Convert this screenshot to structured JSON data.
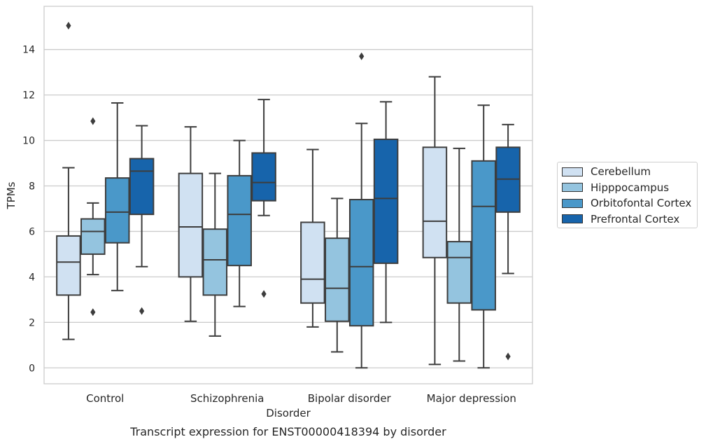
{
  "chart_data": {
    "type": "box",
    "title": "Transcript expression for ENST00000418394 by disorder",
    "xlabel": "Disorder",
    "ylabel": "TPMs",
    "ylim": [
      -0.7,
      15.9
    ],
    "yticks": [
      0,
      2,
      4,
      6,
      8,
      10,
      12,
      14
    ],
    "grid": true,
    "legend_position": "right",
    "categories": [
      "Control",
      "Schizophrenia",
      "Bipolar disorder",
      "Major depression"
    ],
    "series": [
      {
        "name": "Cerebellum",
        "color": "#d0e1f2",
        "boxes": [
          {
            "min": 1.25,
            "q1": 3.2,
            "median": 4.65,
            "q3": 5.8,
            "max": 8.8,
            "outliers": [
              15.05
            ]
          },
          {
            "min": 2.05,
            "q1": 4.0,
            "median": 6.2,
            "q3": 8.55,
            "max": 10.6,
            "outliers": []
          },
          {
            "min": 1.8,
            "q1": 2.85,
            "median": 3.9,
            "q3": 6.4,
            "max": 9.6,
            "outliers": []
          },
          {
            "min": 0.15,
            "q1": 4.85,
            "median": 6.45,
            "q3": 9.7,
            "max": 12.8,
            "outliers": []
          }
        ]
      },
      {
        "name": "Hipppocampus",
        "color": "#94c4df",
        "boxes": [
          {
            "min": 4.1,
            "q1": 5.0,
            "median": 6.0,
            "q3": 6.55,
            "max": 7.25,
            "outliers": [
              2.45,
              10.85
            ]
          },
          {
            "min": 1.4,
            "q1": 3.2,
            "median": 4.75,
            "q3": 6.1,
            "max": 8.55,
            "outliers": []
          },
          {
            "min": 0.7,
            "q1": 2.05,
            "median": 3.5,
            "q3": 5.7,
            "max": 7.45,
            "outliers": []
          },
          {
            "min": 0.3,
            "q1": 2.85,
            "median": 4.85,
            "q3": 5.55,
            "max": 9.65,
            "outliers": []
          }
        ]
      },
      {
        "name": "Orbitofontal Cortex",
        "color": "#4a98c9",
        "boxes": [
          {
            "min": 3.4,
            "q1": 5.5,
            "median": 6.85,
            "q3": 8.35,
            "max": 11.65,
            "outliers": []
          },
          {
            "min": 2.7,
            "q1": 4.5,
            "median": 6.75,
            "q3": 8.45,
            "max": 10.0,
            "outliers": []
          },
          {
            "min": 0.0,
            "q1": 1.85,
            "median": 4.45,
            "q3": 7.4,
            "max": 10.75,
            "outliers": [
              13.7
            ]
          },
          {
            "min": 0.0,
            "q1": 2.55,
            "median": 7.1,
            "q3": 9.1,
            "max": 11.55,
            "outliers": []
          }
        ]
      },
      {
        "name": "Prefrontal Cortex",
        "color": "#1764ab",
        "boxes": [
          {
            "min": 4.45,
            "q1": 6.75,
            "median": 8.65,
            "q3": 9.2,
            "max": 10.65,
            "outliers": [
              2.5
            ]
          },
          {
            "min": 6.7,
            "q1": 7.35,
            "median": 8.15,
            "q3": 9.45,
            "max": 11.8,
            "outliers": [
              3.25
            ]
          },
          {
            "min": 2.0,
            "q1": 4.6,
            "median": 7.45,
            "q3": 10.05,
            "max": 11.7,
            "outliers": []
          },
          {
            "min": 4.15,
            "q1": 6.85,
            "median": 8.3,
            "q3": 9.7,
            "max": 10.7,
            "outliers": [
              0.5
            ]
          }
        ]
      }
    ]
  }
}
